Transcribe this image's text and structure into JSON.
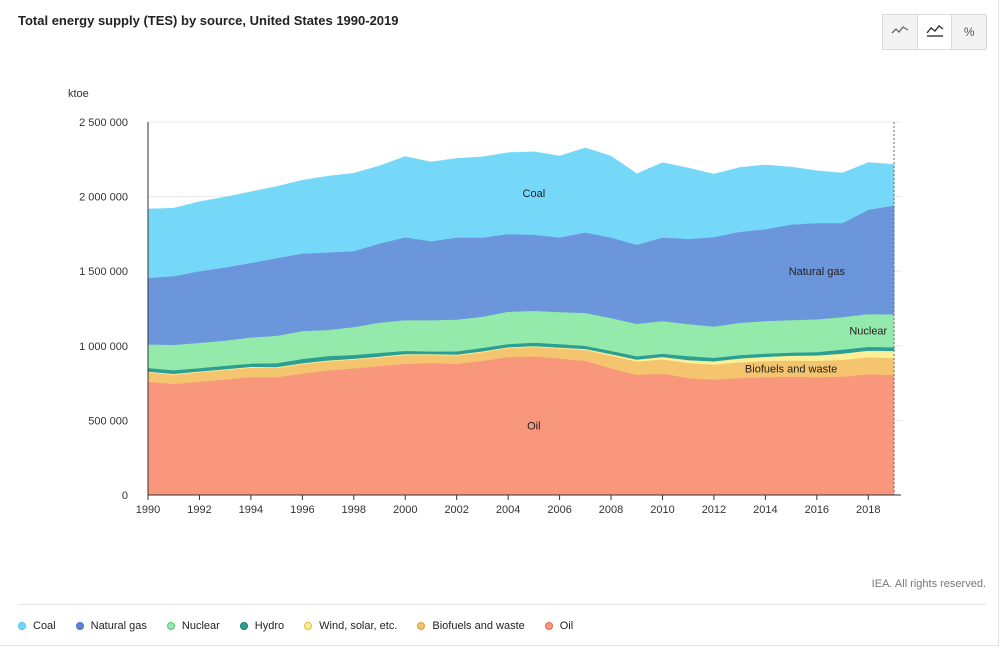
{
  "title": "Total energy supply (TES) by source, United States 1990-2019",
  "toolbar": {
    "buttons": [
      {
        "icon": "line-chart-icon"
      },
      {
        "icon": "area-chart-icon",
        "active": true
      },
      {
        "icon": "percent-icon",
        "label": "%"
      }
    ]
  },
  "credit": "IEA. All rights reserved.",
  "chart_data": {
    "type": "area",
    "stacked": true,
    "title": "Total energy supply (TES) by source, United States 1990-2019",
    "ylabel": "ktoe",
    "xlabel": "",
    "ylim": [
      0,
      2500000
    ],
    "yticks": [
      0,
      500000,
      1000000,
      1500000,
      2000000,
      2500000
    ],
    "ytick_labels": [
      "0",
      "500 000",
      "1 000 000",
      "1 500 000",
      "2 000 000",
      "2 500 000"
    ],
    "xticks": [
      1990,
      1992,
      1994,
      1996,
      1998,
      2000,
      2002,
      2004,
      2006,
      2008,
      2010,
      2012,
      2014,
      2016,
      2018
    ],
    "grid": true,
    "legend_position": "bottom",
    "x": [
      1990,
      1991,
      1992,
      1993,
      1994,
      1995,
      1996,
      1997,
      1998,
      1999,
      2000,
      2001,
      2002,
      2003,
      2004,
      2005,
      2006,
      2007,
      2008,
      2009,
      2010,
      2011,
      2012,
      2013,
      2014,
      2015,
      2016,
      2017,
      2018,
      2019
    ],
    "series": [
      {
        "name": "Oil",
        "color": "#f8977c",
        "label": "Oil",
        "values": [
          760000,
          745000,
          760000,
          775000,
          790000,
          790000,
          815000,
          835000,
          850000,
          865000,
          880000,
          885000,
          880000,
          900000,
          925000,
          930000,
          915000,
          900000,
          850000,
          805000,
          815000,
          785000,
          775000,
          785000,
          790000,
          795000,
          790000,
          795000,
          810000,
          805000
        ]
      },
      {
        "name": "Biofuels and waste",
        "color": "#f5c46e",
        "label": "Biofuels and waste",
        "values": [
          62000,
          62000,
          63000,
          63000,
          64000,
          62000,
          63000,
          62000,
          58000,
          58000,
          59000,
          54000,
          56000,
          58000,
          60000,
          63000,
          68000,
          73000,
          85000,
          90000,
          95000,
          100000,
          100000,
          105000,
          108000,
          108000,
          110000,
          112000,
          114000,
          114000
        ]
      },
      {
        "name": "Wind, solar, etc.",
        "color": "#fbef97",
        "label": "",
        "values": [
          6000,
          6000,
          6000,
          6000,
          6000,
          6000,
          6000,
          6000,
          6000,
          6000,
          6000,
          6000,
          6000,
          6000,
          6000,
          6000,
          6000,
          7000,
          10000,
          13000,
          16000,
          20000,
          22000,
          26000,
          29000,
          31000,
          36000,
          42000,
          45000,
          48000
        ]
      },
      {
        "name": "Hydro",
        "color": "#2b9f94",
        "label": "",
        "values": [
          24000,
          24000,
          22000,
          23000,
          22000,
          26000,
          29000,
          29000,
          26000,
          25000,
          22000,
          18000,
          22000,
          23000,
          22000,
          23000,
          24000,
          21000,
          22000,
          23000,
          22000,
          27000,
          23000,
          23000,
          22000,
          21000,
          23000,
          26000,
          25000,
          24000
        ]
      },
      {
        "name": "Nuclear",
        "color": "#93eaaa",
        "label": "Nuclear",
        "values": [
          159000,
          170000,
          170000,
          169000,
          175000,
          184000,
          186000,
          175000,
          186000,
          202000,
          206000,
          209000,
          212000,
          209000,
          216000,
          213000,
          214000,
          220000,
          219000,
          217000,
          219000,
          215000,
          210000,
          216000,
          218000,
          218000,
          219000,
          218000,
          219000,
          220000
        ]
      },
      {
        "name": "Natural gas",
        "color": "#6b96dc",
        "label": "Natural gas",
        "values": [
          445000,
          460000,
          480000,
          490000,
          500000,
          520000,
          520000,
          520000,
          510000,
          530000,
          555000,
          530000,
          550000,
          530000,
          520000,
          510000,
          500000,
          540000,
          540000,
          530000,
          560000,
          570000,
          600000,
          610000,
          615000,
          640000,
          645000,
          630000,
          700000,
          730000
        ]
      },
      {
        "name": "Coal",
        "color": "#76d8f9",
        "label": "Coal",
        "values": [
          460000,
          455000,
          465000,
          470000,
          475000,
          480000,
          490000,
          510000,
          520000,
          520000,
          540000,
          530000,
          530000,
          540000,
          545000,
          555000,
          545000,
          565000,
          545000,
          475000,
          500000,
          475000,
          420000,
          430000,
          430000,
          385000,
          350000,
          335000,
          315000,
          275000
        ]
      }
    ]
  },
  "legend": [
    {
      "name": "Coal",
      "color": "#76d8f9",
      "border": "#4fc4ec"
    },
    {
      "name": "Natural gas",
      "color": "#5a86d4",
      "border": "#4a73c0"
    },
    {
      "name": "Nuclear",
      "color": "#93eaaa",
      "border": "#58c67a"
    },
    {
      "name": "Hydro",
      "color": "#2b9f94",
      "border": "#1f7d74"
    },
    {
      "name": "Wind, solar, etc.",
      "color": "#fbef97",
      "border": "#d8c430"
    },
    {
      "name": "Biofuels and waste",
      "color": "#f5c46e",
      "border": "#d89f3a"
    },
    {
      "name": "Oil",
      "color": "#f8977c",
      "border": "#e0694f"
    }
  ]
}
